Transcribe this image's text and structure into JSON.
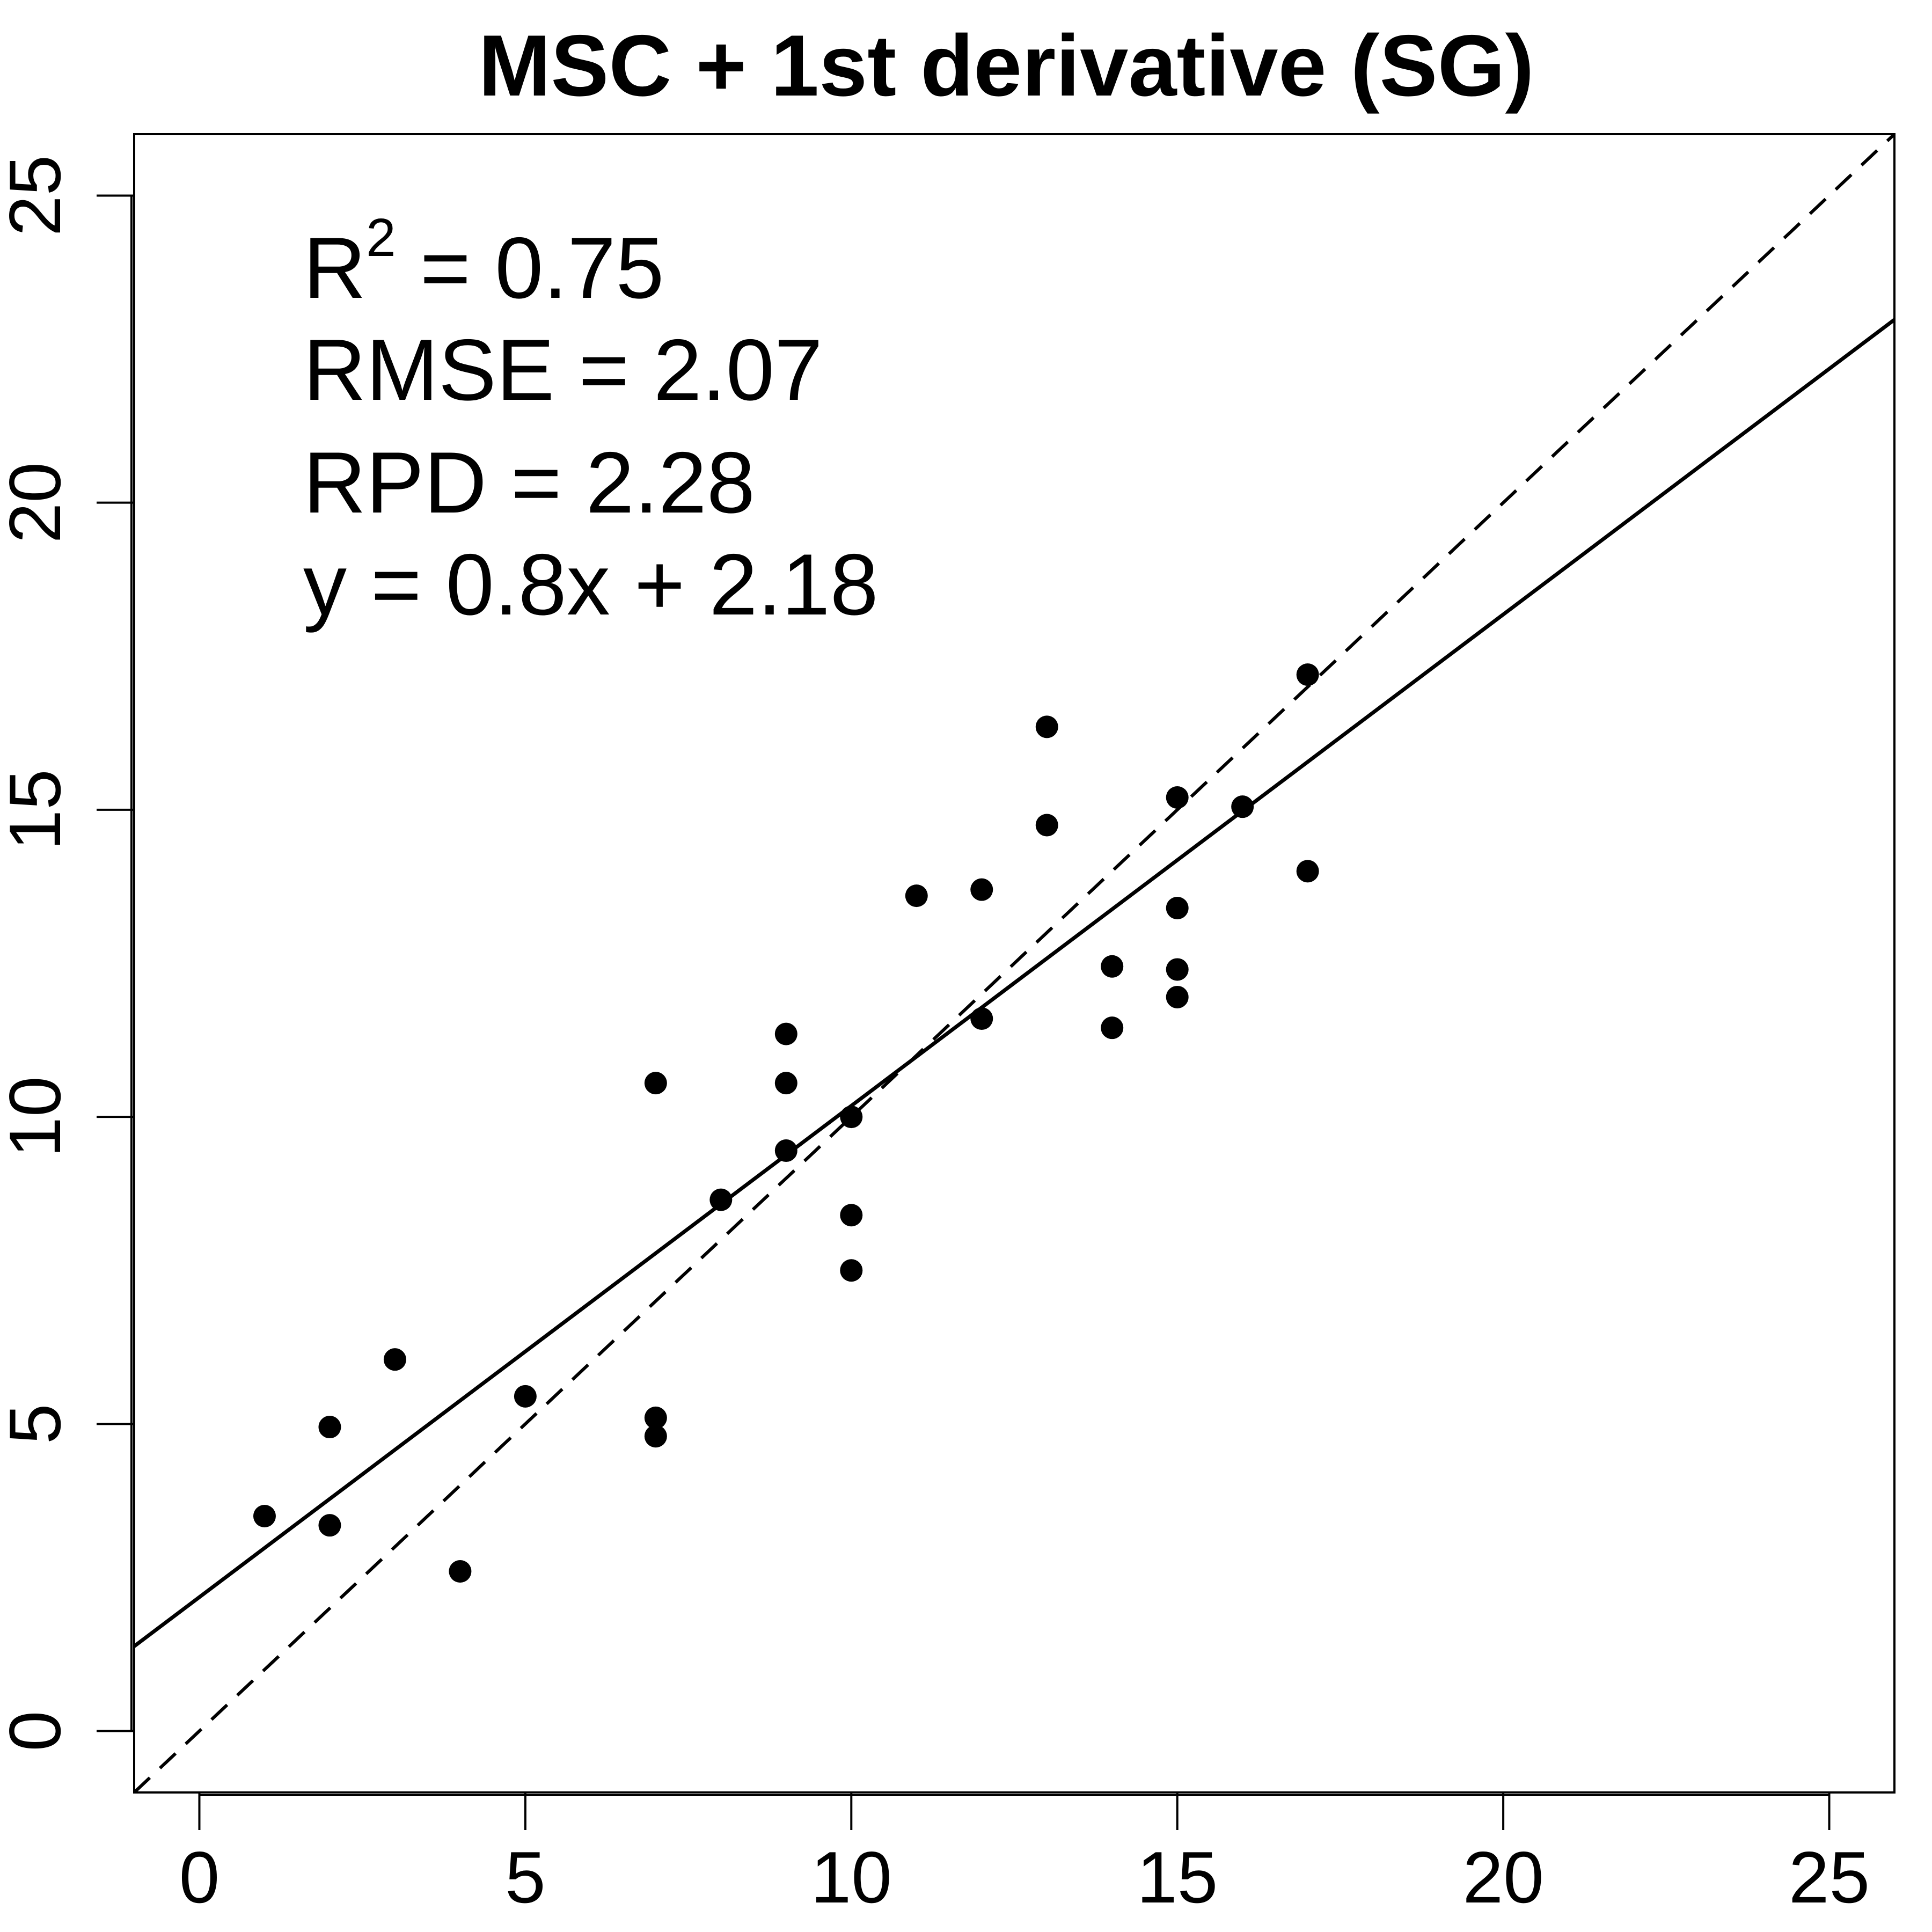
{
  "chart_data": {
    "type": "scatter",
    "title": "MSC + 1st derivative (SG)",
    "xlabel": "",
    "ylabel": "",
    "xlim": [
      -1,
      26
    ],
    "ylim": [
      -1,
      26
    ],
    "x_ticks": [
      0,
      5,
      10,
      15,
      20,
      25
    ],
    "y_ticks": [
      0,
      5,
      10,
      15,
      20,
      25
    ],
    "grid": false,
    "marker_color": "#000000",
    "points": [
      {
        "x": 1,
        "y": 3.5
      },
      {
        "x": 2,
        "y": 4.95
      },
      {
        "x": 2,
        "y": 3.35
      },
      {
        "x": 3,
        "y": 6.05
      },
      {
        "x": 4,
        "y": 2.6
      },
      {
        "x": 5,
        "y": 5.45
      },
      {
        "x": 7,
        "y": 10.55
      },
      {
        "x": 7,
        "y": 5.1
      },
      {
        "x": 7,
        "y": 4.8
      },
      {
        "x": 8,
        "y": 8.65
      },
      {
        "x": 9,
        "y": 11.35
      },
      {
        "x": 9,
        "y": 10.55
      },
      {
        "x": 9,
        "y": 9.45
      },
      {
        "x": 10,
        "y": 10.0
      },
      {
        "x": 10,
        "y": 8.4
      },
      {
        "x": 10,
        "y": 7.5
      },
      {
        "x": 11,
        "y": 13.6
      },
      {
        "x": 12,
        "y": 13.7
      },
      {
        "x": 12,
        "y": 11.6
      },
      {
        "x": 13,
        "y": 16.35
      },
      {
        "x": 13,
        "y": 14.75
      },
      {
        "x": 14,
        "y": 12.45
      },
      {
        "x": 14,
        "y": 11.45
      },
      {
        "x": 15,
        "y": 15.2
      },
      {
        "x": 15,
        "y": 13.4
      },
      {
        "x": 15,
        "y": 12.4
      },
      {
        "x": 15,
        "y": 11.95
      },
      {
        "x": 16,
        "y": 15.05
      },
      {
        "x": 17,
        "y": 17.2
      },
      {
        "x": 17,
        "y": 14.0
      }
    ],
    "fit_line": {
      "slope": 0.8,
      "intercept": 2.18,
      "style": "solid"
    },
    "reference_line": {
      "slope": 1,
      "intercept": 0,
      "style": "dashed"
    },
    "annotations": {
      "r2_label": "R",
      "r2_sup": "2",
      "r2_value": " = 0.75",
      "rmse": "RMSE = 2.07",
      "rpd": "RPD = 2.28",
      "equation": "y = 0.8x + 2.18"
    }
  }
}
